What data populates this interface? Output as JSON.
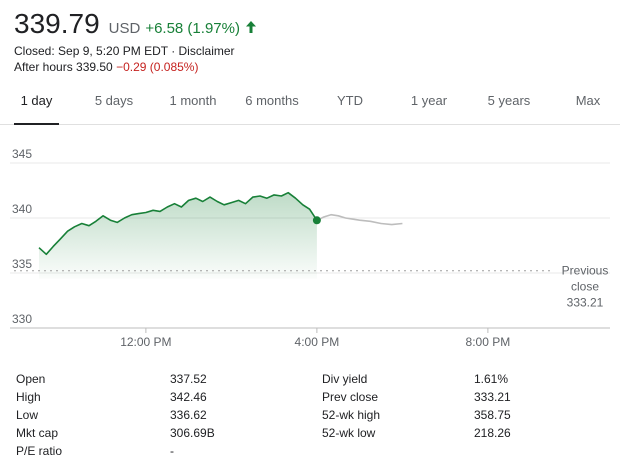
{
  "quote": {
    "price": "339.79",
    "currency": "USD",
    "change": "+6.58 (1.97%)",
    "closed_text": "Closed: Sep 9, 5:20 PM EDT · Disclaimer",
    "after_hours_label": "After hours 339.50",
    "after_hours_change": "−0.29 (0.085%)",
    "direction_icon": "arrow-up-icon",
    "up_color": "#188038",
    "down_color": "#c5221f"
  },
  "tabs": [
    {
      "label": "1 day",
      "active": true
    },
    {
      "label": "5 days"
    },
    {
      "label": "1 month"
    },
    {
      "label": "6 months"
    },
    {
      "label": "YTD"
    },
    {
      "label": "1 year"
    },
    {
      "label": "5 years"
    },
    {
      "label": "Max"
    }
  ],
  "chart_data": {
    "type": "area",
    "y_ticks": [
      "345",
      "340",
      "335",
      "330"
    ],
    "x_ticks": [
      "12:00 PM",
      "4:00 PM",
      "8:00 PM"
    ],
    "ylim": [
      330,
      347
    ],
    "x_unit": "hours",
    "xlim": [
      9.5,
      21.5
    ],
    "previous_close": {
      "label_line1": "Previous",
      "label_line2": "close",
      "value": "333.21",
      "y": 333.21
    },
    "series": [
      {
        "session": "regular",
        "color": "#188038",
        "x": [
          9.5,
          9.67,
          9.83,
          10.0,
          10.17,
          10.33,
          10.5,
          10.67,
          10.83,
          11.0,
          11.17,
          11.33,
          11.5,
          11.67,
          11.83,
          12.0,
          12.17,
          12.33,
          12.5,
          12.67,
          12.83,
          13.0,
          13.17,
          13.33,
          13.5,
          13.67,
          13.83,
          14.0,
          14.17,
          14.33,
          14.5,
          14.67,
          14.83,
          15.0,
          15.17,
          15.33,
          15.5,
          15.67,
          15.83,
          16.0
        ],
        "y": [
          337.3,
          336.7,
          337.4,
          338.1,
          338.8,
          339.2,
          339.5,
          339.3,
          339.7,
          340.2,
          339.8,
          339.6,
          340.0,
          340.3,
          340.4,
          340.5,
          340.7,
          340.6,
          341.0,
          341.3,
          341.0,
          341.6,
          341.8,
          341.5,
          341.9,
          341.5,
          341.2,
          341.4,
          341.6,
          341.3,
          341.9,
          342.0,
          341.8,
          342.1,
          342.0,
          342.3,
          341.8,
          341.2,
          340.8,
          339.79
        ]
      },
      {
        "session": "after-hours",
        "color": "#bdbdbd",
        "x": [
          16.0,
          16.17,
          16.33,
          16.5,
          16.67,
          16.83,
          17.0,
          17.25,
          17.5,
          17.75,
          18.0
        ],
        "y": [
          339.79,
          340.1,
          340.3,
          340.2,
          340.0,
          339.9,
          339.8,
          339.7,
          339.5,
          339.4,
          339.5
        ]
      }
    ]
  },
  "stats": {
    "left": [
      {
        "label": "Open",
        "value": "337.52"
      },
      {
        "label": "High",
        "value": "342.46"
      },
      {
        "label": "Low",
        "value": "336.62"
      },
      {
        "label": "Mkt cap",
        "value": "306.69B"
      },
      {
        "label": "P/E ratio",
        "value": "-"
      }
    ],
    "right": [
      {
        "label": "Div yield",
        "value": "1.61%"
      },
      {
        "label": "Prev close",
        "value": "333.21"
      },
      {
        "label": "52-wk high",
        "value": "358.75"
      },
      {
        "label": "52-wk low",
        "value": "218.26"
      }
    ]
  }
}
